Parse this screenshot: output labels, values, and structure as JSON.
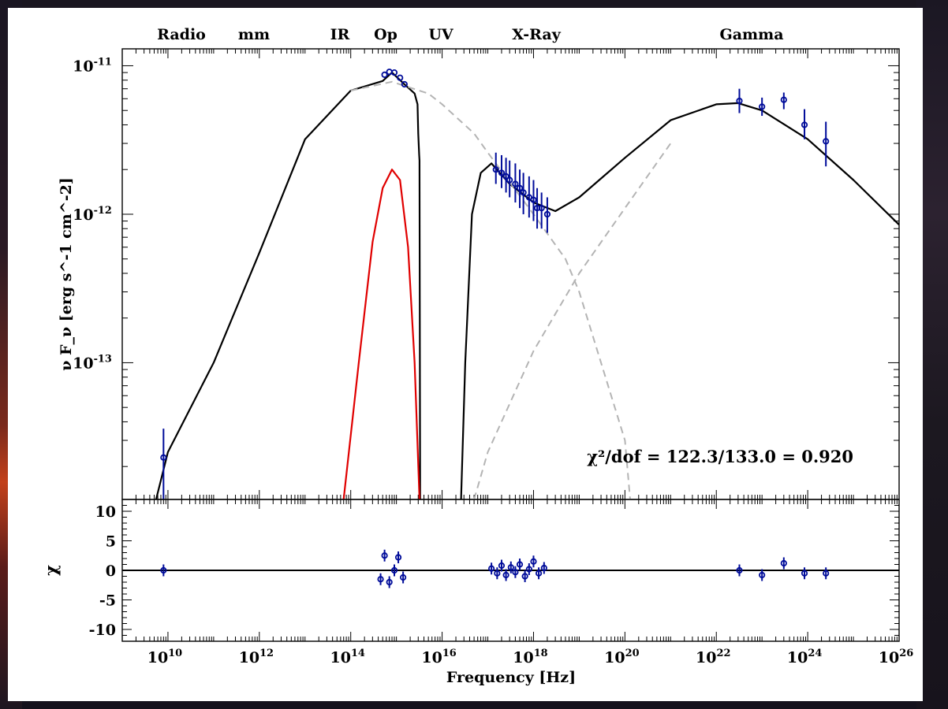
{
  "chart_data": [
    {
      "type": "line",
      "title": "",
      "xlabel": "Frequency [Hz]",
      "ylabel": "ν F_ν [erg s^-1 cm^-2]",
      "xscale": "log",
      "yscale": "log",
      "xlim": [
        1000000000.0,
        1e+26
      ],
      "ylim": [
        1.2e-14,
        1.3e-11
      ],
      "x_tick_labels": [
        "10^10",
        "10^12",
        "10^14",
        "10^16",
        "10^18",
        "10^20",
        "10^22",
        "10^24",
        "10^26"
      ],
      "y_tick_labels": [
        "10^-11",
        "10^-12",
        "10^-13"
      ],
      "band_labels": [
        "Radio",
        "mm",
        "IR",
        "Op",
        "UV",
        "X-Ray",
        "Gamma"
      ],
      "annotation": "χ²/dof = 122.3/133.0 = 0.920",
      "series": [
        {
          "color": "#000000",
          "style": "solid",
          "points": [
            [
              5500000000.0,
              1.2e-14
            ],
            [
              10000000000.0,
              2.5e-14
            ],
            [
              100000000000.0,
              1e-13
            ],
            [
              1000000000000.0,
              5.5e-13
            ],
            [
              10000000000000.0,
              3.2e-12
            ],
            [
              100000000000000.0,
              6.8e-12
            ],
            [
              500000000000000.0,
              7.9e-12
            ],
            [
              800000000000000.0,
              9e-12
            ],
            [
              1500000000000000.0,
              7.5e-12
            ],
            [
              2500000000000000.0,
              6.5e-12
            ],
            [
              2900000000000000.0,
              5.5e-12
            ],
            [
              3000000000000000.0,
              3.5e-12
            ],
            [
              3150000000000000.0,
              2.5e-12
            ],
            [
              3200000000000000.0,
              2.3e-12
            ],
            [
              3300000000000000.0,
              1.2e-14
            ]
          ]
        },
        {
          "color": "#000000",
          "style": "solid",
          "points": [
            [
              2.6e+16,
              1.2e-14
            ],
            [
              3.2e+16,
              1e-13
            ],
            [
              4.5e+16,
              1e-12
            ],
            [
              7e+16,
              1.9e-12
            ],
            [
              1.2e+17,
              2.2e-12
            ],
            [
              3e+17,
              1.6e-12
            ],
            [
              1e+18,
              1.2e-12
            ],
            [
              3e+18,
              1.05e-12
            ],
            [
              1e+19,
              1.3e-12
            ],
            [
              1e+20,
              2.4e-12
            ],
            [
              1e+21,
              4.3e-12
            ],
            [
              1e+22,
              5.5e-12
            ],
            [
              3e+22,
              5.6e-12
            ],
            [
              1e+23,
              5e-12
            ],
            [
              1e+24,
              3.2e-12
            ],
            [
              1e+25,
              1.7e-12
            ],
            [
              1e+26,
              8.5e-13
            ]
          ]
        },
        {
          "color": "#e00000",
          "style": "solid",
          "points": [
            [
              70000000000000.0,
              1.2e-14
            ],
            [
              150000000000000.0,
              1e-13
            ],
            [
              300000000000000.0,
              6.5e-13
            ],
            [
              500000000000000.0,
              1.5e-12
            ],
            [
              800000000000000.0,
              2e-12
            ],
            [
              1200000000000000.0,
              1.7e-12
            ],
            [
              1800000000000000.0,
              6e-13
            ],
            [
              2500000000000000.0,
              1e-13
            ],
            [
              3200000000000000.0,
              1.2e-14
            ]
          ]
        },
        {
          "color": "#b4b4b4",
          "style": "dashed",
          "points": [
            [
              100000000000000.0,
              6.8e-12
            ],
            [
              800000000000000.0,
              7.8e-12
            ],
            [
              5000000000000000.0,
              6.5e-12
            ],
            [
              1e+16,
              5.5e-12
            ],
            [
              5e+16,
              3.5e-12
            ],
            [
              1e+17,
              2.6e-12
            ],
            [
              1e+18,
              1e-12
            ],
            [
              5e+18,
              5e-13
            ],
            [
              1e+19,
              3e-13
            ],
            [
              1e+20,
              3e-14
            ],
            [
              1.3e+20,
              1.2e-14
            ]
          ]
        },
        {
          "color": "#b4b4b4",
          "style": "dashed",
          "points": [
            [
              5e+16,
              1.2e-14
            ],
            [
              1e+17,
              2.5e-14
            ],
            [
              1e+18,
              1.2e-13
            ],
            [
              1e+19,
              4e-13
            ],
            [
              1e+20,
              1.1e-12
            ],
            [
              1e+21,
              3e-12
            ]
          ]
        }
      ],
      "data_points": [
        {
          "x": 8000000000.0,
          "y": 2.3e-14,
          "ylow": 1.2e-14,
          "yhigh": 3.6e-14
        },
        {
          "x": 550000000000000.0,
          "y": 8.7e-12
        },
        {
          "x": 700000000000000.0,
          "y": 9.1e-12
        },
        {
          "x": 900000000000000.0,
          "y": 9e-12
        },
        {
          "x": 1200000000000000.0,
          "y": 8.3e-12
        },
        {
          "x": 1500000000000000.0,
          "y": 7.5e-12
        },
        {
          "x": 1.5e+17,
          "y": 2e-12,
          "ylow": 1.6e-12,
          "yhigh": 2.6e-12
        },
        {
          "x": 2e+17,
          "y": 1.9e-12,
          "ylow": 1.5e-12,
          "yhigh": 2.5e-12
        },
        {
          "x": 2.5e+17,
          "y": 1.8e-12,
          "ylow": 1.4e-12,
          "yhigh": 2.4e-12
        },
        {
          "x": 3e+17,
          "y": 1.7e-12,
          "ylow": 1.3e-12,
          "yhigh": 2.3e-12
        },
        {
          "x": 4e+17,
          "y": 1.6e-12,
          "ylow": 1.2e-12,
          "yhigh": 2.2e-12
        },
        {
          "x": 5e+17,
          "y": 1.5e-12,
          "ylow": 1.1e-12,
          "yhigh": 2e-12
        },
        {
          "x": 6e+17,
          "y": 1.4e-12,
          "ylow": 1e-12,
          "yhigh": 1.9e-12
        },
        {
          "x": 8e+17,
          "y": 1.3e-12,
          "ylow": 9.5e-13,
          "yhigh": 1.8e-12
        },
        {
          "x": 1e+18,
          "y": 1.25e-12,
          "ylow": 9e-13,
          "yhigh": 1.7e-12
        },
        {
          "x": 1.2e+18,
          "y": 1.1e-12,
          "ylow": 8e-13,
          "yhigh": 1.5e-12
        },
        {
          "x": 1.5e+18,
          "y": 1.1e-12,
          "ylow": 8e-13,
          "yhigh": 1.4e-12
        },
        {
          "x": 2e+18,
          "y": 1e-12,
          "ylow": 7.5e-13,
          "yhigh": 1.3e-12
        },
        {
          "x": 3.2e+22,
          "y": 5.8e-12,
          "ylow": 4.8e-12,
          "yhigh": 7e-12
        },
        {
          "x": 1e+23,
          "y": 5.3e-12,
          "ylow": 4.6e-12,
          "yhigh": 6.1e-12
        },
        {
          "x": 3e+23,
          "y": 5.9e-12,
          "ylow": 5.1e-12,
          "yhigh": 6.6e-12
        },
        {
          "x": 8.5e+23,
          "y": 4e-12,
          "ylow": 3.2e-12,
          "yhigh": 5.1e-12
        },
        {
          "x": 2.5e+24,
          "y": 3.1e-12,
          "ylow": 2.1e-12,
          "yhigh": 4.2e-12
        }
      ]
    },
    {
      "type": "scatter",
      "title": "",
      "xlabel": "Frequency [Hz]",
      "ylabel": "χ",
      "xscale": "log",
      "xlim": [
        1000000000.0,
        1e+26
      ],
      "ylim": [
        -12,
        12
      ],
      "y_tick_labels": [
        "10",
        "5",
        "0",
        "-5",
        "-10"
      ],
      "baseline": 0,
      "points": [
        {
          "x": 8000000000.0,
          "y": 0,
          "err": 1
        },
        {
          "x": 450000000000000.0,
          "y": -1.5,
          "err": 1
        },
        {
          "x": 550000000000000.0,
          "y": 2.5,
          "err": 1
        },
        {
          "x": 700000000000000.0,
          "y": -2,
          "err": 1
        },
        {
          "x": 900000000000000.0,
          "y": 0,
          "err": 1
        },
        {
          "x": 1100000000000000.0,
          "y": 2.2,
          "err": 1
        },
        {
          "x": 1400000000000000.0,
          "y": -1.2,
          "err": 1
        },
        {
          "x": 1.2e+17,
          "y": 0.3,
          "err": 1
        },
        {
          "x": 1.6e+17,
          "y": -0.5,
          "err": 1
        },
        {
          "x": 2e+17,
          "y": 0.8,
          "err": 1
        },
        {
          "x": 2.5e+17,
          "y": -0.8,
          "err": 1
        },
        {
          "x": 3.2e+17,
          "y": 0.5,
          "err": 1
        },
        {
          "x": 4e+17,
          "y": -0.3,
          "err": 1
        },
        {
          "x": 5e+17,
          "y": 1.0,
          "err": 1
        },
        {
          "x": 6.5e+17,
          "y": -1.0,
          "err": 1
        },
        {
          "x": 8e+17,
          "y": 0.2,
          "err": 1
        },
        {
          "x": 1e+18,
          "y": 1.5,
          "err": 1
        },
        {
          "x": 1.3e+18,
          "y": -0.5,
          "err": 1
        },
        {
          "x": 1.7e+18,
          "y": 0.4,
          "err": 1
        },
        {
          "x": 3.2e+22,
          "y": 0,
          "err": 1
        },
        {
          "x": 1e+23,
          "y": -0.8,
          "err": 1
        },
        {
          "x": 3e+23,
          "y": 1.2,
          "err": 1
        },
        {
          "x": 8.5e+23,
          "y": -0.5,
          "err": 1
        },
        {
          "x": 2.5e+24,
          "y": -0.5,
          "err": 1
        }
      ]
    }
  ]
}
